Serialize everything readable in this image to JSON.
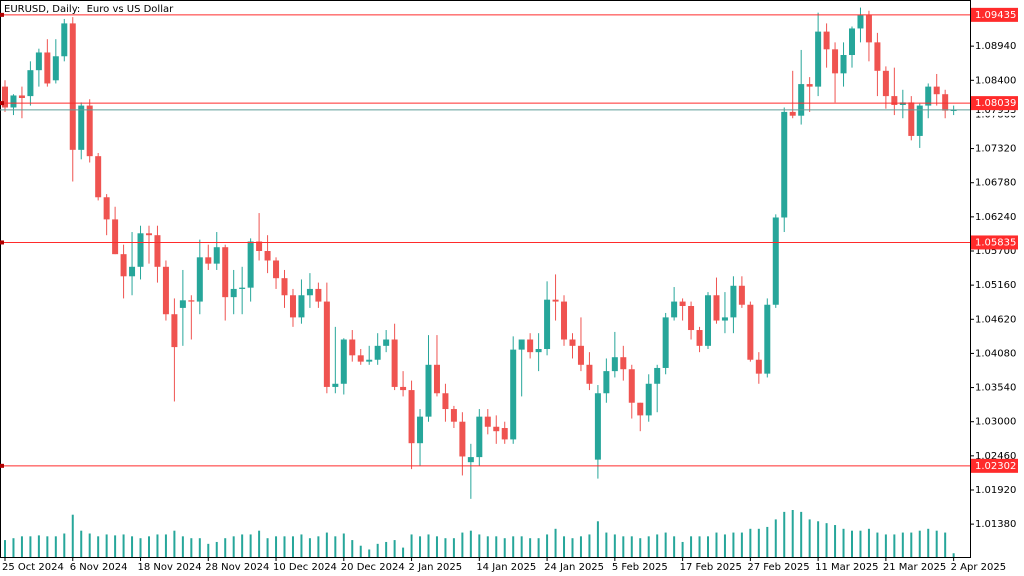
{
  "chart_data": {
    "type": "candlestick",
    "title": "EURUSD, Daily:  Euro vs US Dollar",
    "categories": [
      "25 Oct 2024",
      null,
      null,
      null,
      null,
      null,
      null,
      null,
      "6 Nov 2024",
      null,
      null,
      null,
      null,
      null,
      null,
      null,
      "18 Nov 2024",
      null,
      null,
      null,
      null,
      null,
      null,
      null,
      "28 Nov 2024",
      null,
      null,
      null,
      null,
      null,
      null,
      null,
      "10 Dec 2024",
      null,
      null,
      null,
      null,
      null,
      null,
      null,
      "20 Dec 2024",
      null,
      null,
      null,
      null,
      null,
      null,
      null,
      "2 Jan 2025",
      null,
      null,
      null,
      null,
      null,
      null,
      null,
      "14 Jan 2025",
      null,
      null,
      null,
      null,
      null,
      null,
      null,
      "24 Jan 2025",
      null,
      null,
      null,
      null,
      null,
      null,
      null,
      "5 Feb 2025",
      null,
      null,
      null,
      null,
      null,
      null,
      null,
      "17 Feb 2025",
      null,
      null,
      null,
      null,
      null,
      null,
      null,
      "27 Feb 2025",
      null,
      null,
      null,
      null,
      null,
      null,
      null,
      "11 Mar 2025",
      null,
      null,
      null,
      null,
      null,
      null,
      null,
      "21 Mar 2025",
      null,
      null,
      null,
      null,
      null,
      null,
      null,
      "2 Apr 2025"
    ],
    "open": [
      1.083,
      1.0797,
      1.0816,
      1.0815,
      1.0856,
      1.0884,
      1.084,
      1.0878,
      1.093,
      1.073,
      1.08,
      1.072,
      1.0655,
      1.062,
      1.0565,
      1.053,
      1.0545,
      1.0598,
      1.0595,
      1.0545,
      1.047,
      1.048,
      1.0492,
      1.049,
      1.056,
      1.055,
      1.0576,
      1.0497,
      1.051,
      1.0512,
      1.0585,
      1.057,
      1.0555,
      1.0527,
      1.05,
      1.0465,
      1.05,
      1.051,
      1.049,
      1.0355,
      1.036,
      1.043,
      1.0405,
      1.0395,
      1.0398,
      1.042,
      1.043,
      1.0355,
      1.035,
      1.0266,
      1.0308,
      1.039,
      1.0345,
      1.032,
      1.03,
      1.0236,
      1.0244,
      1.0308,
      1.0292,
      1.029,
      1.0272,
      1.0414,
      1.043,
      1.041,
      1.0415,
      1.0493,
      1.049,
      1.043,
      1.042,
      1.039,
      1.024,
      1.0345,
      1.038,
      1.0402,
      1.0383,
      1.033,
      1.031,
      1.036,
      1.0385,
      1.0465,
      1.049,
      1.0483,
      1.0445,
      1.042,
      1.05,
      1.046,
      1.0465,
      1.0515,
      1.0485,
      1.0398,
      1.0376,
      1.0485,
      1.0623,
      1.079,
      1.0784,
      1.0834,
      1.083,
      1.0917,
      1.0889,
      1.0851,
      1.088,
      1.0922,
      1.0943,
      1.09,
      1.0855,
      1.0815,
      1.0801,
      1.0805,
      1.0752,
      1.08,
      1.083,
      1.0818,
      1.0792
    ],
    "high": [
      1.084,
      1.0818,
      1.083,
      1.087,
      1.089,
      1.0905,
      1.0905,
      1.0937,
      1.094,
      1.0805,
      1.081,
      1.0725,
      1.066,
      1.064,
      1.058,
      1.06,
      1.061,
      1.061,
      1.061,
      1.0555,
      1.0495,
      1.054,
      1.05,
      1.0588,
      1.058,
      1.06,
      1.058,
      1.054,
      1.0545,
      1.059,
      1.063,
      1.0595,
      1.056,
      1.054,
      1.051,
      1.0525,
      1.0535,
      1.052,
      1.052,
      1.045,
      1.0432,
      1.0445,
      1.0415,
      1.042,
      1.044,
      1.0445,
      1.0455,
      1.038,
      1.0365,
      1.032,
      1.0437,
      1.0437,
      1.036,
      1.0325,
      1.0315,
      1.0265,
      1.032,
      1.032,
      1.031,
      1.03,
      1.0435,
      1.043,
      1.044,
      1.044,
      1.0522,
      1.0533,
      1.05,
      1.044,
      1.0465,
      1.041,
      1.0358,
      1.04,
      1.0442,
      1.042,
      1.039,
      1.033,
      1.0375,
      1.039,
      1.0472,
      1.0513,
      1.0495,
      1.049,
      1.045,
      1.0505,
      1.0528,
      1.0505,
      1.053,
      1.053,
      1.049,
      1.041,
      1.0495,
      1.0628,
      1.0797,
      1.0855,
      1.0888,
      1.0845,
      1.0947,
      1.093,
      1.09,
      1.09,
      1.0925,
      1.0955,
      1.095,
      1.0915,
      1.0862,
      1.086,
      1.0825,
      1.0815,
      1.0803,
      1.0835,
      1.085,
      1.0825,
      1.08
    ],
    "low": [
      1.079,
      1.0785,
      1.078,
      1.08,
      1.083,
      1.083,
      1.0835,
      1.087,
      1.068,
      1.0715,
      1.071,
      1.065,
      1.0595,
      1.0565,
      1.0495,
      1.05,
      1.0525,
      1.055,
      1.052,
      1.046,
      1.0332,
      1.042,
      1.043,
      1.047,
      1.054,
      1.054,
      1.046,
      1.047,
      1.047,
      1.049,
      1.0555,
      1.0535,
      1.051,
      1.048,
      1.045,
      1.0455,
      1.048,
      1.048,
      1.0345,
      1.0345,
      1.0343,
      1.0395,
      1.039,
      1.039,
      1.039,
      1.041,
      1.035,
      1.034,
      1.0225,
      1.023,
      1.03,
      1.034,
      1.03,
      1.029,
      1.0215,
      1.0178,
      1.023,
      1.028,
      1.0265,
      1.0265,
      1.0265,
      1.034,
      1.04,
      1.038,
      1.0405,
      1.046,
      1.042,
      1.04,
      1.038,
      1.035,
      1.021,
      1.033,
      1.037,
      1.0365,
      1.0305,
      1.0285,
      1.03,
      1.0315,
      1.0375,
      1.046,
      1.046,
      1.043,
      1.041,
      1.0415,
      1.0455,
      1.044,
      1.044,
      1.048,
      1.0395,
      1.036,
      1.037,
      1.048,
      1.06,
      1.078,
      1.077,
      1.079,
      1.0815,
      1.086,
      1.0805,
      1.083,
      1.086,
      1.09,
      1.087,
      1.0815,
      1.0795,
      1.0785,
      1.078,
      1.0745,
      1.0733,
      1.078,
      1.08,
      1.078,
      1.0785
    ],
    "close": [
      1.0797,
      1.0816,
      1.0812,
      1.0856,
      1.0884,
      1.0835,
      1.0878,
      1.093,
      1.073,
      1.08,
      1.072,
      1.0655,
      1.062,
      1.0565,
      1.053,
      1.0545,
      1.0598,
      1.0595,
      1.0545,
      1.047,
      1.0418,
      1.0492,
      1.049,
      1.056,
      1.055,
      1.0576,
      1.0497,
      1.051,
      1.0512,
      1.0585,
      1.057,
      1.0555,
      1.0527,
      1.05,
      1.0465,
      1.05,
      1.051,
      1.049,
      1.0355,
      1.036,
      1.043,
      1.0405,
      1.0395,
      1.0398,
      1.042,
      1.043,
      1.0355,
      1.035,
      1.0266,
      1.0308,
      1.039,
      1.0345,
      1.032,
      1.03,
      1.0245,
      1.0244,
      1.0308,
      1.0292,
      1.0285,
      1.0272,
      1.0414,
      1.043,
      1.041,
      1.0415,
      1.0493,
      1.049,
      1.043,
      1.042,
      1.039,
      1.036,
      1.0345,
      1.038,
      1.0402,
      1.0383,
      1.033,
      1.031,
      1.036,
      1.0385,
      1.0465,
      1.049,
      1.0483,
      1.0445,
      1.042,
      1.05,
      1.046,
      1.0465,
      1.0515,
      1.0485,
      1.0398,
      1.0376,
      1.0485,
      1.0623,
      1.079,
      1.0784,
      1.0834,
      1.083,
      1.0917,
      1.0889,
      1.0851,
      1.088,
      1.0922,
      1.0943,
      1.09,
      1.0855,
      1.0815,
      1.0801,
      1.0805,
      1.0752,
      1.08,
      1.083,
      1.0818,
      1.0792,
      1.0793
    ],
    "volume": [
      18,
      20,
      22,
      22,
      23,
      22,
      22,
      25,
      45,
      28,
      25,
      22,
      24,
      23,
      24,
      22,
      20,
      22,
      24,
      24,
      28,
      22,
      20,
      20,
      14,
      16,
      20,
      22,
      24,
      24,
      28,
      20,
      22,
      22,
      22,
      24,
      20,
      22,
      26,
      22,
      25,
      18,
      12,
      8,
      14,
      16,
      18,
      10,
      24,
      22,
      24,
      22,
      20,
      20,
      26,
      28,
      24,
      22,
      22,
      20,
      22,
      22,
      20,
      20,
      24,
      30,
      22,
      20,
      22,
      24,
      38,
      26,
      24,
      22,
      22,
      20,
      22,
      24,
      26,
      22,
      16,
      22,
      22,
      22,
      26,
      24,
      26,
      26,
      30,
      30,
      32,
      40,
      48,
      50,
      48,
      40,
      38,
      36,
      34,
      30,
      28,
      28,
      30,
      26,
      24,
      24,
      26,
      26,
      28,
      30,
      28,
      26,
      4
    ],
    "vlim": [
      0,
      50
    ],
    "up_color": "#26a69a",
    "down_color": "#ef5350",
    "volume_color": "#26a69a",
    "ylim": [
      1.0086,
      1.0967
    ],
    "yticks": [
      {
        "value": 1.0894,
        "label": "1.08940"
      },
      {
        "value": 1.084,
        "label": "1.08400"
      },
      {
        "value": 1.0786,
        "label": "1.07860"
      },
      {
        "value": 1.0732,
        "label": "1.07320"
      },
      {
        "value": 1.0678,
        "label": "1.06780"
      },
      {
        "value": 1.0624,
        "label": "1.06240"
      },
      {
        "value": 1.057,
        "label": "1.05700"
      },
      {
        "value": 1.0516,
        "label": "1.05160"
      },
      {
        "value": 1.0462,
        "label": "1.04620"
      },
      {
        "value": 1.0408,
        "label": "1.04080"
      },
      {
        "value": 1.0354,
        "label": "1.03540"
      },
      {
        "value": 1.03,
        "label": "1.03000"
      },
      {
        "value": 1.0246,
        "label": "1.02460"
      },
      {
        "value": 1.0192,
        "label": "1.01920"
      },
      {
        "value": 1.0138,
        "label": "1.01380"
      }
    ],
    "bid": 1.07933,
    "bid_color": "#5f9f9a",
    "levels": [
      1.09435,
      1.08039,
      1.05835,
      1.02302
    ],
    "level_color": "#ff2b2b",
    "grid": false
  }
}
